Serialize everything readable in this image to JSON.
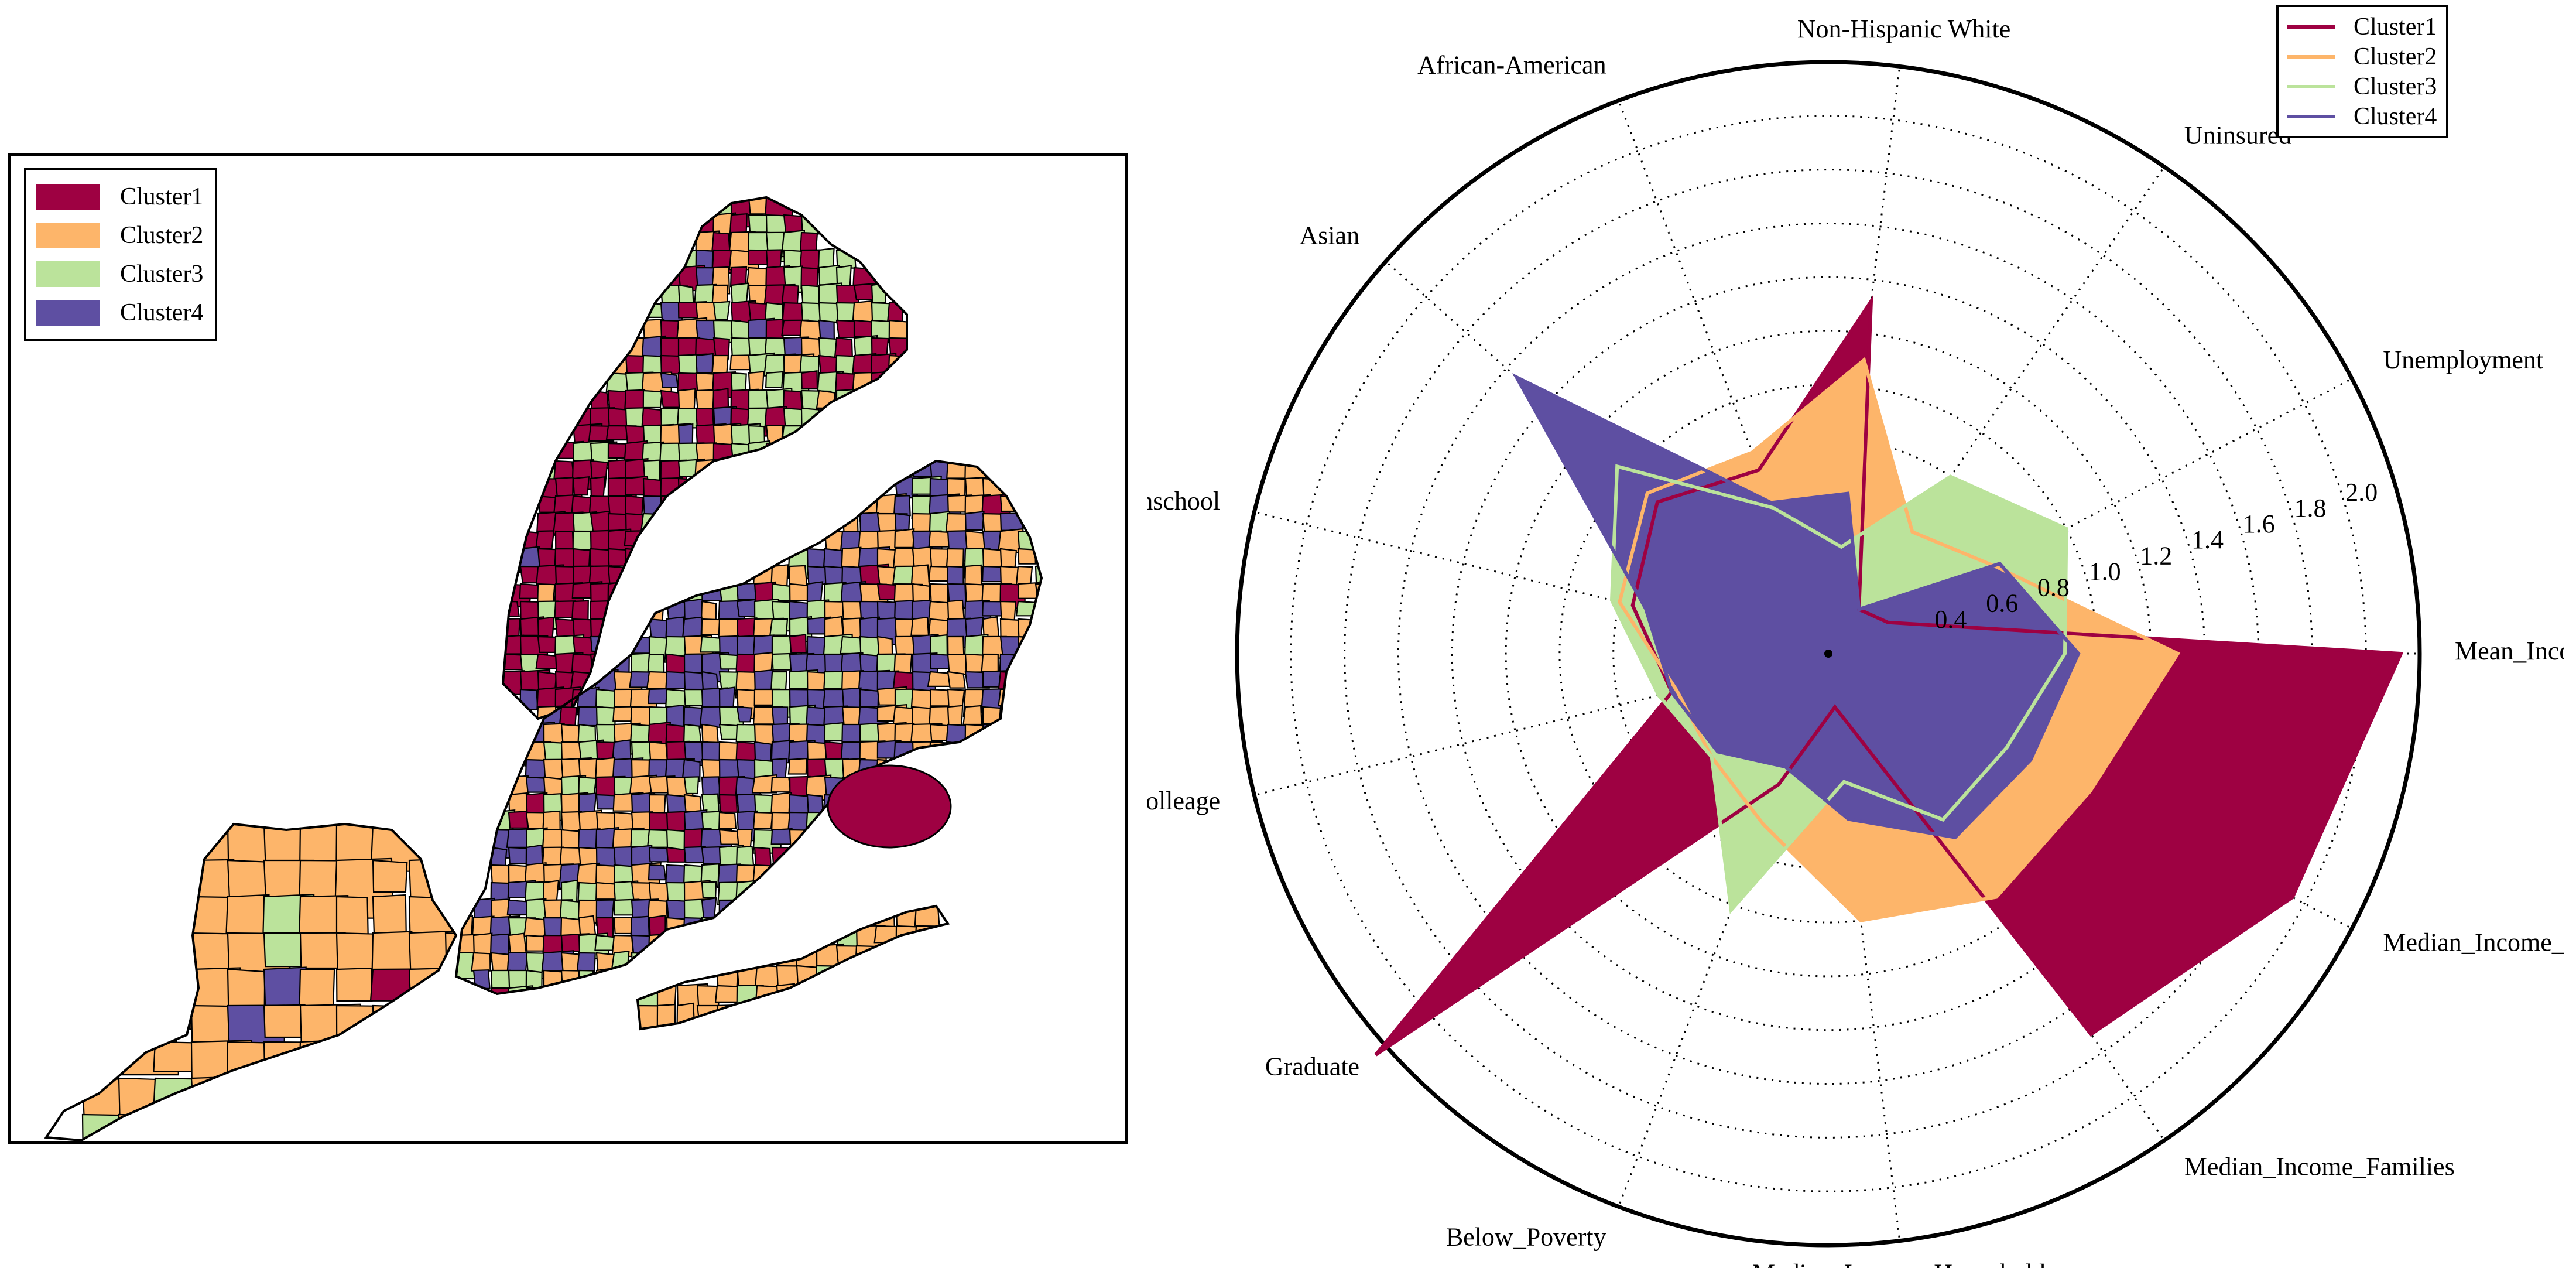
{
  "colors": {
    "Cluster1": "#9e0142",
    "Cluster2": "#fdb56a",
    "Cluster3": "#bbe39b",
    "Cluster4": "#5e4fa2"
  },
  "map": {
    "legend": [
      {
        "label": "Cluster1",
        "color": "#9e0142"
      },
      {
        "label": "Cluster2",
        "color": "#fdb56a"
      },
      {
        "label": "Cluster3",
        "color": "#bbe39b"
      },
      {
        "label": "Cluster4",
        "color": "#5e4fa2"
      }
    ]
  },
  "chart_data": [
    {
      "type": "radar",
      "title": "",
      "axes": [
        "Mean_Income_All",
        "Unemployment",
        "Uninsured",
        "Non-Hispanic White",
        "African-American",
        "Asian",
        "Highschool",
        "Colleage",
        "Graduate",
        "Below_Poverty",
        "Median_Income_Households",
        "Median_Income_Families",
        "Median_Income_Nonfamily"
      ],
      "radial_ticks": [
        "0.4",
        "0.6",
        "0.8",
        "1.0",
        "1.2",
        "1.4",
        "1.6",
        "1.8",
        "2.0"
      ],
      "rlim": [
        0,
        2.2
      ],
      "grid": true,
      "legend_position": "top-right",
      "series": [
        {
          "name": "Cluster1",
          "color": "#9e0142",
          "filled": true,
          "values": [
            2.13,
            0.25,
            0.2,
            1.32,
            0.73,
            0.85,
            0.75,
            0.6,
            2.25,
            0.52,
            0.2,
            1.72,
            1.95
          ]
        },
        {
          "name": "Cluster2",
          "color": "#fdb56a",
          "filled": true,
          "values": [
            1.3,
            0.7,
            0.55,
            1.1,
            0.8,
            0.9,
            0.8,
            0.58,
            0.58,
            0.68,
            1.0,
            1.1,
            1.1
          ]
        },
        {
          "name": "Cluster3",
          "color": "#bbe39b",
          "filled": true,
          "values": [
            0.88,
            1.0,
            0.8,
            0.4,
            0.58,
            1.05,
            0.83,
            0.65,
            0.58,
            1.02,
            0.48,
            0.75,
            0.75
          ]
        },
        {
          "name": "Cluster4",
          "color": "#5e4fa2",
          "filled": true,
          "values": [
            0.93,
            0.72,
            0.2,
            0.6,
            0.6,
            1.55,
            0.7,
            0.6,
            0.55,
            0.45,
            0.62,
            0.83,
            0.85
          ]
        }
      ]
    }
  ]
}
